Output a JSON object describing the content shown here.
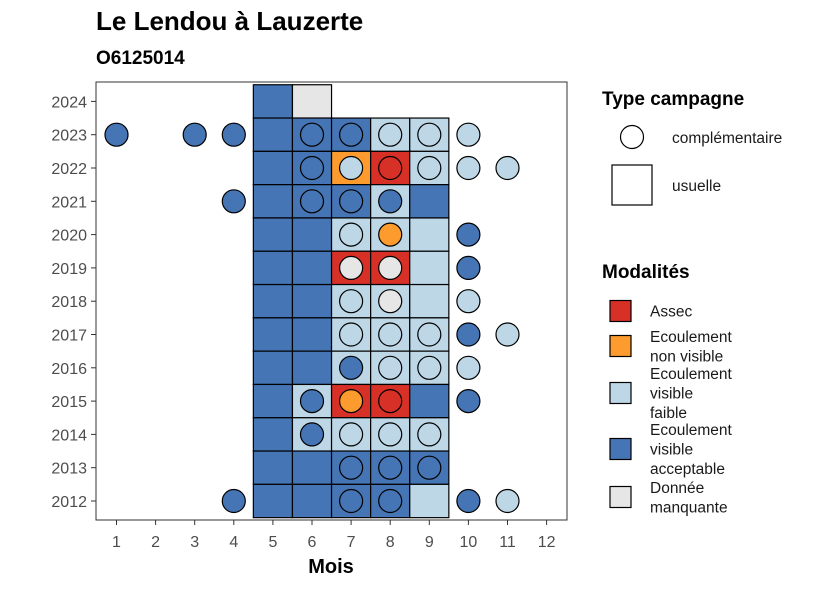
{
  "chart_data": {
    "type": "heatmap",
    "title": "Le Lendou à Lauzerte",
    "subtitle": "O6125014",
    "xlabel": "Mois",
    "ylabel": "",
    "x_ticks": [
      "1",
      "2",
      "3",
      "4",
      "5",
      "6",
      "7",
      "8",
      "9",
      "10",
      "11",
      "12"
    ],
    "y_ticks": [
      "2012",
      "2013",
      "2014",
      "2015",
      "2016",
      "2017",
      "2018",
      "2019",
      "2020",
      "2021",
      "2022",
      "2023",
      "2024"
    ],
    "grid": false,
    "legend_position": "right",
    "modalites": [
      {
        "key": "assec",
        "label": [
          "Assec"
        ],
        "color": "#d73027"
      },
      {
        "key": "ecoulement_non_visible",
        "label": [
          "Ecoulement",
          "non visible"
        ],
        "color": "#fd9b2e"
      },
      {
        "key": "ecoulement_visible_faible",
        "label": [
          "Ecoulement",
          "visible",
          "faible"
        ],
        "color": "#bdd7e7"
      },
      {
        "key": "ecoulement_visible_acceptable",
        "label": [
          "Ecoulement",
          "visible",
          "acceptable"
        ],
        "color": "#4575b4"
      },
      {
        "key": "donnee_manquante",
        "label": [
          "Donnée",
          "manquante"
        ],
        "color": "#e6e6e6"
      }
    ],
    "type_campagne": {
      "title": "Type campagne",
      "items": [
        {
          "key": "complementaire",
          "label": "complémentaire",
          "shape": "circle"
        },
        {
          "key": "usuelle",
          "label": "usuelle",
          "shape": "square"
        }
      ]
    },
    "usuelle": [
      {
        "year": 2024,
        "month": 5,
        "value": "ecoulement_visible_acceptable"
      },
      {
        "year": 2024,
        "month": 6,
        "value": "donnee_manquante"
      },
      {
        "year": 2023,
        "month": 5,
        "value": "ecoulement_visible_acceptable"
      },
      {
        "year": 2023,
        "month": 6,
        "value": "ecoulement_visible_acceptable"
      },
      {
        "year": 2023,
        "month": 7,
        "value": "ecoulement_visible_acceptable"
      },
      {
        "year": 2023,
        "month": 8,
        "value": "ecoulement_visible_faible"
      },
      {
        "year": 2023,
        "month": 9,
        "value": "ecoulement_visible_faible"
      },
      {
        "year": 2022,
        "month": 5,
        "value": "ecoulement_visible_acceptable"
      },
      {
        "year": 2022,
        "month": 6,
        "value": "ecoulement_visible_acceptable"
      },
      {
        "year": 2022,
        "month": 7,
        "value": "ecoulement_non_visible"
      },
      {
        "year": 2022,
        "month": 8,
        "value": "assec"
      },
      {
        "year": 2022,
        "month": 9,
        "value": "ecoulement_visible_faible"
      },
      {
        "year": 2021,
        "month": 5,
        "value": "ecoulement_visible_acceptable"
      },
      {
        "year": 2021,
        "month": 6,
        "value": "ecoulement_visible_acceptable"
      },
      {
        "year": 2021,
        "month": 7,
        "value": "ecoulement_visible_acceptable"
      },
      {
        "year": 2021,
        "month": 8,
        "value": "ecoulement_visible_faible"
      },
      {
        "year": 2021,
        "month": 9,
        "value": "ecoulement_visible_acceptable"
      },
      {
        "year": 2020,
        "month": 5,
        "value": "ecoulement_visible_acceptable"
      },
      {
        "year": 2020,
        "month": 6,
        "value": "ecoulement_visible_acceptable"
      },
      {
        "year": 2020,
        "month": 7,
        "value": "ecoulement_visible_faible"
      },
      {
        "year": 2020,
        "month": 8,
        "value": "ecoulement_visible_faible"
      },
      {
        "year": 2020,
        "month": 9,
        "value": "ecoulement_visible_faible"
      },
      {
        "year": 2019,
        "month": 5,
        "value": "ecoulement_visible_acceptable"
      },
      {
        "year": 2019,
        "month": 6,
        "value": "ecoulement_visible_acceptable"
      },
      {
        "year": 2019,
        "month": 7,
        "value": "assec"
      },
      {
        "year": 2019,
        "month": 8,
        "value": "assec"
      },
      {
        "year": 2019,
        "month": 9,
        "value": "ecoulement_visible_faible"
      },
      {
        "year": 2018,
        "month": 5,
        "value": "ecoulement_visible_acceptable"
      },
      {
        "year": 2018,
        "month": 6,
        "value": "ecoulement_visible_acceptable"
      },
      {
        "year": 2018,
        "month": 7,
        "value": "ecoulement_visible_faible"
      },
      {
        "year": 2018,
        "month": 8,
        "value": "ecoulement_visible_faible"
      },
      {
        "year": 2018,
        "month": 9,
        "value": "ecoulement_visible_faible"
      },
      {
        "year": 2017,
        "month": 5,
        "value": "ecoulement_visible_acceptable"
      },
      {
        "year": 2017,
        "month": 6,
        "value": "ecoulement_visible_acceptable"
      },
      {
        "year": 2017,
        "month": 7,
        "value": "ecoulement_visible_faible"
      },
      {
        "year": 2017,
        "month": 8,
        "value": "ecoulement_visible_faible"
      },
      {
        "year": 2017,
        "month": 9,
        "value": "ecoulement_visible_faible"
      },
      {
        "year": 2016,
        "month": 5,
        "value": "ecoulement_visible_acceptable"
      },
      {
        "year": 2016,
        "month": 6,
        "value": "ecoulement_visible_acceptable"
      },
      {
        "year": 2016,
        "month": 7,
        "value": "ecoulement_visible_faible"
      },
      {
        "year": 2016,
        "month": 8,
        "value": "ecoulement_visible_faible"
      },
      {
        "year": 2016,
        "month": 9,
        "value": "ecoulement_visible_faible"
      },
      {
        "year": 2015,
        "month": 5,
        "value": "ecoulement_visible_acceptable"
      },
      {
        "year": 2015,
        "month": 6,
        "value": "ecoulement_visible_faible"
      },
      {
        "year": 2015,
        "month": 7,
        "value": "assec"
      },
      {
        "year": 2015,
        "month": 8,
        "value": "assec"
      },
      {
        "year": 2015,
        "month": 9,
        "value": "ecoulement_visible_acceptable"
      },
      {
        "year": 2014,
        "month": 5,
        "value": "ecoulement_visible_acceptable"
      },
      {
        "year": 2014,
        "month": 6,
        "value": "ecoulement_visible_faible"
      },
      {
        "year": 2014,
        "month": 7,
        "value": "ecoulement_visible_faible"
      },
      {
        "year": 2014,
        "month": 8,
        "value": "ecoulement_visible_faible"
      },
      {
        "year": 2014,
        "month": 9,
        "value": "ecoulement_visible_faible"
      },
      {
        "year": 2013,
        "month": 5,
        "value": "ecoulement_visible_acceptable"
      },
      {
        "year": 2013,
        "month": 6,
        "value": "ecoulement_visible_acceptable"
      },
      {
        "year": 2013,
        "month": 7,
        "value": "ecoulement_visible_acceptable"
      },
      {
        "year": 2013,
        "month": 8,
        "value": "ecoulement_visible_acceptable"
      },
      {
        "year": 2013,
        "month": 9,
        "value": "ecoulement_visible_acceptable"
      },
      {
        "year": 2012,
        "month": 5,
        "value": "ecoulement_visible_acceptable"
      },
      {
        "year": 2012,
        "month": 6,
        "value": "ecoulement_visible_acceptable"
      },
      {
        "year": 2012,
        "month": 7,
        "value": "ecoulement_visible_acceptable"
      },
      {
        "year": 2012,
        "month": 8,
        "value": "ecoulement_visible_acceptable"
      },
      {
        "year": 2012,
        "month": 9,
        "value": "ecoulement_visible_faible"
      }
    ],
    "complementaire": [
      {
        "year": 2023,
        "month": 1,
        "value": "ecoulement_visible_acceptable"
      },
      {
        "year": 2023,
        "month": 3,
        "value": "ecoulement_visible_acceptable"
      },
      {
        "year": 2023,
        "month": 4,
        "value": "ecoulement_visible_acceptable"
      },
      {
        "year": 2023,
        "month": 6,
        "value": "ecoulement_visible_acceptable"
      },
      {
        "year": 2023,
        "month": 7,
        "value": "ecoulement_visible_acceptable"
      },
      {
        "year": 2023,
        "month": 8,
        "value": "ecoulement_visible_faible"
      },
      {
        "year": 2023,
        "month": 9,
        "value": "ecoulement_visible_faible"
      },
      {
        "year": 2023,
        "month": 10,
        "value": "ecoulement_visible_faible"
      },
      {
        "year": 2022,
        "month": 6,
        "value": "ecoulement_visible_acceptable"
      },
      {
        "year": 2022,
        "month": 7,
        "value": "ecoulement_visible_faible"
      },
      {
        "year": 2022,
        "month": 8,
        "value": "assec"
      },
      {
        "year": 2022,
        "month": 9,
        "value": "ecoulement_visible_faible"
      },
      {
        "year": 2022,
        "month": 10,
        "value": "ecoulement_visible_faible"
      },
      {
        "year": 2022,
        "month": 11,
        "value": "ecoulement_visible_faible"
      },
      {
        "year": 2021,
        "month": 4,
        "value": "ecoulement_visible_acceptable"
      },
      {
        "year": 2021,
        "month": 6,
        "value": "ecoulement_visible_acceptable"
      },
      {
        "year": 2021,
        "month": 7,
        "value": "ecoulement_visible_acceptable"
      },
      {
        "year": 2021,
        "month": 8,
        "value": "ecoulement_visible_acceptable"
      },
      {
        "year": 2020,
        "month": 7,
        "value": "ecoulement_visible_faible"
      },
      {
        "year": 2020,
        "month": 8,
        "value": "ecoulement_non_visible"
      },
      {
        "year": 2020,
        "month": 10,
        "value": "ecoulement_visible_acceptable"
      },
      {
        "year": 2019,
        "month": 7,
        "value": "donnee_manquante"
      },
      {
        "year": 2019,
        "month": 8,
        "value": "donnee_manquante"
      },
      {
        "year": 2019,
        "month": 10,
        "value": "ecoulement_visible_acceptable"
      },
      {
        "year": 2018,
        "month": 7,
        "value": "ecoulement_visible_faible"
      },
      {
        "year": 2018,
        "month": 8,
        "value": "donnee_manquante"
      },
      {
        "year": 2018,
        "month": 10,
        "value": "ecoulement_visible_faible"
      },
      {
        "year": 2017,
        "month": 7,
        "value": "ecoulement_visible_faible"
      },
      {
        "year": 2017,
        "month": 8,
        "value": "ecoulement_visible_faible"
      },
      {
        "year": 2017,
        "month": 9,
        "value": "ecoulement_visible_faible"
      },
      {
        "year": 2017,
        "month": 10,
        "value": "ecoulement_visible_acceptable"
      },
      {
        "year": 2017,
        "month": 11,
        "value": "ecoulement_visible_faible"
      },
      {
        "year": 2016,
        "month": 7,
        "value": "ecoulement_visible_acceptable"
      },
      {
        "year": 2016,
        "month": 8,
        "value": "ecoulement_visible_faible"
      },
      {
        "year": 2016,
        "month": 9,
        "value": "ecoulement_visible_faible"
      },
      {
        "year": 2016,
        "month": 10,
        "value": "ecoulement_visible_faible"
      },
      {
        "year": 2015,
        "month": 6,
        "value": "ecoulement_visible_acceptable"
      },
      {
        "year": 2015,
        "month": 7,
        "value": "ecoulement_non_visible"
      },
      {
        "year": 2015,
        "month": 8,
        "value": "assec"
      },
      {
        "year": 2015,
        "month": 10,
        "value": "ecoulement_visible_acceptable"
      },
      {
        "year": 2014,
        "month": 6,
        "value": "ecoulement_visible_acceptable"
      },
      {
        "year": 2014,
        "month": 7,
        "value": "ecoulement_visible_faible"
      },
      {
        "year": 2014,
        "month": 8,
        "value": "ecoulement_visible_faible"
      },
      {
        "year": 2014,
        "month": 9,
        "value": "ecoulement_visible_faible"
      },
      {
        "year": 2013,
        "month": 7,
        "value": "ecoulement_visible_acceptable"
      },
      {
        "year": 2013,
        "month": 8,
        "value": "ecoulement_visible_acceptable"
      },
      {
        "year": 2013,
        "month": 9,
        "value": "ecoulement_visible_acceptable"
      },
      {
        "year": 2012,
        "month": 4,
        "value": "ecoulement_visible_acceptable"
      },
      {
        "year": 2012,
        "month": 7,
        "value": "ecoulement_visible_acceptable"
      },
      {
        "year": 2012,
        "month": 8,
        "value": "ecoulement_visible_acceptable"
      },
      {
        "year": 2012,
        "month": 10,
        "value": "ecoulement_visible_acceptable"
      },
      {
        "year": 2012,
        "month": 11,
        "value": "ecoulement_visible_faible"
      }
    ]
  }
}
